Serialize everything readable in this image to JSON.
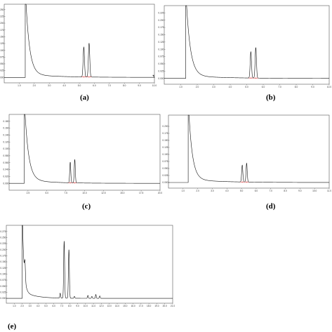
{
  "chart_data": [
    {
      "type": "line",
      "panel_label": "(a)",
      "header": [
        "",
        ""
      ],
      "xlim": [
        0,
        10
      ],
      "x_ticks": [
        1.0,
        2.0,
        3.0,
        4.0,
        5.0,
        6.0,
        7.0,
        8.0,
        9.0,
        10.0
      ],
      "x_tick_labels": [
        "1.0",
        "2.0",
        "3.0",
        "4.0",
        "5.0",
        "6.0",
        "7.0",
        "8.0",
        "9.0",
        "10.0"
      ],
      "ylim": [
        -0.02,
        0.27
      ],
      "y_ticks": [
        0.0,
        0.025,
        0.05,
        0.075,
        0.1,
        0.125,
        0.15,
        0.175,
        0.2,
        0.225,
        0.25
      ],
      "y_tick_labels": [
        "0.000",
        "0.025",
        "0.050",
        "0.075",
        "0.100",
        "0.125",
        "0.150",
        "0.175",
        "0.200",
        "0.225",
        "0.250"
      ],
      "baseline": 0.0,
      "solvent_front": 1.4,
      "solvent_decay": 0.25,
      "tail_amp": 0.012,
      "tail_decay": 2.0,
      "peaks": [
        {
          "rt": 5.3,
          "height": 0.11,
          "width": 0.045
        },
        {
          "rt": 5.65,
          "height": 0.125,
          "width": 0.045
        }
      ],
      "step_end": {
        "x": 9.9,
        "y": 0.008
      }
    },
    {
      "type": "line",
      "panel_label": "(b)",
      "header": [
        "",
        ""
      ],
      "xlim": [
        0,
        10
      ],
      "x_ticks": [
        1.0,
        2.0,
        3.0,
        4.0,
        5.0,
        6.0,
        7.0,
        8.0,
        9.0,
        10.0
      ],
      "x_tick_labels": [
        "1.0",
        "2.0",
        "3.0",
        "4.0",
        "5.0",
        "6.0",
        "7.0",
        "8.0",
        "9.0",
        "10.0"
      ],
      "ylim": [
        -0.02,
        0.25
      ],
      "y_ticks": [
        0.0,
        0.025,
        0.05,
        0.075,
        0.1,
        0.125,
        0.15,
        0.175,
        0.2,
        0.225
      ],
      "y_tick_labels": [
        "0.000",
        "0.025",
        "0.050",
        "0.075",
        "0.100",
        "0.125",
        "0.150",
        "0.175",
        "0.200",
        "0.225"
      ],
      "baseline": 0.0,
      "solvent_front": 1.3,
      "solvent_decay": 0.25,
      "tail_amp": 0.01,
      "tail_decay": 2.0,
      "peaks": [
        {
          "rt": 5.25,
          "height": 0.09,
          "width": 0.04
        },
        {
          "rt": 5.55,
          "height": 0.105,
          "width": 0.04
        }
      ]
    },
    {
      "type": "line",
      "panel_label": "(c)",
      "header": [
        "",
        ""
      ],
      "xlim": [
        0,
        20
      ],
      "x_ticks": [
        2.5,
        5.0,
        7.5,
        10.0,
        12.5,
        15.0,
        17.5,
        20.0
      ],
      "x_tick_labels": [
        "2.5",
        "5.0",
        "7.5",
        "10.0",
        "12.5",
        "15.0",
        "17.5",
        "20.0"
      ],
      "ylim": [
        -0.02,
        0.2
      ],
      "y_ticks": [
        0.0,
        0.02,
        0.04,
        0.06,
        0.08,
        0.1,
        0.12,
        0.14,
        0.16,
        0.18
      ],
      "y_tick_labels": [
        "0.000",
        "0.020",
        "0.040",
        "0.060",
        "0.080",
        "0.100",
        "0.120",
        "0.140",
        "0.160",
        "0.180"
      ],
      "baseline": 0.0,
      "solvent_front": 2.0,
      "solvent_decay": 0.5,
      "tail_amp": 0.012,
      "tail_decay": 3.0,
      "peaks": [
        {
          "rt": 8.1,
          "height": 0.06,
          "width": 0.07
        },
        {
          "rt": 8.7,
          "height": 0.068,
          "width": 0.07
        }
      ]
    },
    {
      "type": "line",
      "panel_label": "(d)",
      "header": [
        "",
        ""
      ],
      "xlim": [
        0,
        11
      ],
      "x_ticks": [
        1.0,
        2.0,
        3.0,
        4.0,
        5.0,
        6.0,
        7.0,
        8.0,
        9.0,
        10.0,
        11.0
      ],
      "x_tick_labels": [
        "1.0",
        "2.0",
        "3.0",
        "4.0",
        "5.0",
        "6.0",
        "7.0",
        "8.0",
        "9.0",
        "10.0",
        "11.0"
      ],
      "ylim": [
        -0.02,
        0.24
      ],
      "y_ticks": [
        0.0,
        0.025,
        0.05,
        0.075,
        0.1,
        0.125,
        0.15,
        0.175,
        0.2
      ],
      "y_tick_labels": [
        "0.000",
        "0.025",
        "0.050",
        "0.075",
        "0.100",
        "0.125",
        "0.150",
        "0.175",
        "0.200"
      ],
      "baseline": 0.0,
      "solvent_front": 1.35,
      "solvent_decay": 0.25,
      "tail_amp": 0.012,
      "tail_decay": 2.0,
      "peaks": [
        {
          "rt": 5.05,
          "height": 0.06,
          "width": 0.04
        },
        {
          "rt": 5.35,
          "height": 0.067,
          "width": 0.04
        }
      ]
    },
    {
      "type": "line",
      "panel_label": "(e)",
      "header": [
        "",
        ""
      ],
      "xlim": [
        0,
        21
      ],
      "x_ticks": [
        1,
        2,
        3,
        4,
        5,
        6,
        7,
        8,
        9,
        10,
        11,
        12,
        13,
        14,
        15,
        16,
        17,
        18,
        19,
        20,
        21
      ],
      "x_tick_labels": [
        "1.0",
        "2.0",
        "3.0",
        "4.0",
        "5.0",
        "6.0",
        "7.0",
        "8.0",
        "9.0",
        "10.0",
        "11.0",
        "12.0",
        "13.0",
        "14.0",
        "15.0",
        "16.0",
        "17.0",
        "18.0",
        "19.0",
        "20.0",
        "21.0"
      ],
      "ylim": [
        -0.02,
        0.3
      ],
      "y_ticks": [
        0.0,
        0.025,
        0.05,
        0.075,
        0.1,
        0.125,
        0.15,
        0.175,
        0.2,
        0.225,
        0.25,
        0.275
      ],
      "y_tick_labels": [
        "0.000",
        "0.025",
        "0.050",
        "0.075",
        "0.100",
        "0.125",
        "0.150",
        "0.175",
        "0.200",
        "0.225",
        "0.250",
        "0.275"
      ],
      "baseline": 0.0,
      "solvent_front": 2.0,
      "solvent_decay": 0.2,
      "tail_amp": 0.03,
      "tail_decay": 1.5,
      "peaks": [
        {
          "rt": 2.35,
          "height": 0.07,
          "width": 0.06
        },
        {
          "rt": 6.8,
          "height": 0.02,
          "width": 0.05
        },
        {
          "rt": 7.3,
          "height": 0.235,
          "width": 0.06
        },
        {
          "rt": 7.9,
          "height": 0.2,
          "width": 0.06
        },
        {
          "rt": 8.6,
          "height": 0.008,
          "width": 0.05
        },
        {
          "rt": 10.3,
          "height": 0.012,
          "width": 0.05
        },
        {
          "rt": 10.8,
          "height": 0.008,
          "width": 0.05
        },
        {
          "rt": 11.3,
          "height": 0.016,
          "width": 0.05
        },
        {
          "rt": 11.8,
          "height": 0.01,
          "width": 0.05
        }
      ]
    }
  ]
}
